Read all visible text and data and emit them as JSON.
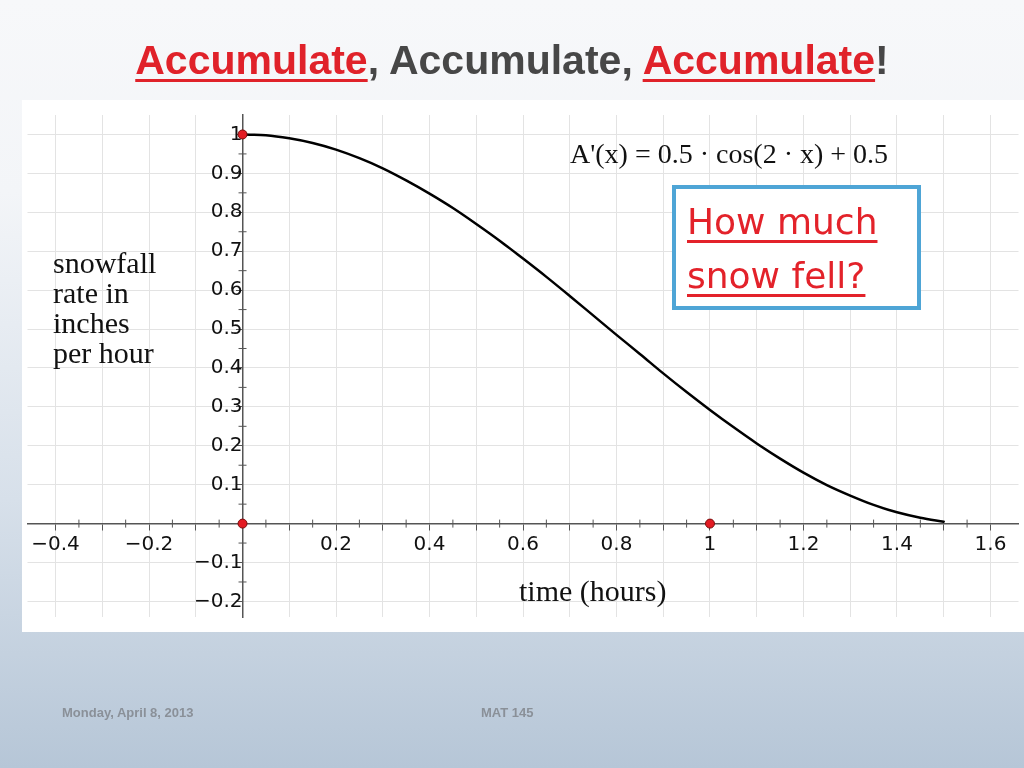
{
  "chart_data": {
    "type": "line",
    "title": "Accumulate, Accumulate, Accumulate!",
    "xlabel": "time (hours)",
    "ylabel": "snowfall rate in inches per hour",
    "annotations": [
      "A'(x) = 0.5 · cos(2 · x) + 0.5",
      "How much snow fell?",
      "Monday, April 8, 2013",
      "MAT 145"
    ],
    "series": [
      {
        "color": "#000000",
        "x": [
          0,
          0.05,
          0.1,
          0.15,
          0.2,
          0.25,
          0.3,
          0.35,
          0.4,
          0.45,
          0.5,
          0.55,
          0.6,
          0.65,
          0.7,
          0.75,
          0.8,
          0.85,
          0.9,
          0.95,
          1,
          1.05,
          1.1,
          1.15,
          1.2,
          1.25,
          1.3,
          1.35,
          1.4,
          1.45,
          1.5
        ],
        "values": [
          1,
          0.998,
          0.99,
          0.978,
          0.961,
          0.939,
          0.913,
          0.882,
          0.848,
          0.811,
          0.77,
          0.727,
          0.681,
          0.634,
          0.585,
          0.535,
          0.485,
          0.436,
          0.386,
          0.338,
          0.292,
          0.248,
          0.206,
          0.167,
          0.131,
          0.099,
          0.072,
          0.048,
          0.029,
          0.015,
          0.005
        ]
      },
      {
        "type": "scatter",
        "color": "#e31b23",
        "marker": "circle",
        "x": [
          0,
          0,
          1
        ],
        "values": [
          1,
          0,
          0
        ]
      }
    ],
    "xlim": [
      -0.46,
      1.66
    ],
    "ylim": [
      -0.24,
      1.05
    ],
    "xticks": [
      {
        "value": -0.4,
        "label": "−0.4"
      },
      {
        "value": -0.3,
        "label": null
      },
      {
        "value": -0.2,
        "label": "−0.2"
      },
      {
        "value": -0.1,
        "label": null
      },
      {
        "value": 0,
        "label": null
      },
      {
        "value": 0.1,
        "label": null
      },
      0.2,
      {
        "value": 0.3,
        "label": null
      },
      0.4,
      {
        "value": 0.5,
        "label": null
      },
      0.6,
      {
        "value": 0.7,
        "label": null
      },
      0.8,
      {
        "value": 0.9,
        "label": null
      },
      1,
      {
        "value": 1.1,
        "label": null
      },
      1.2,
      {
        "value": 1.3,
        "label": null
      },
      1.4,
      {
        "value": 1.5,
        "label": null
      },
      1.6
    ],
    "yticks": [
      {
        "value": -0.2,
        "label": "−0.2"
      },
      {
        "value": -0.1,
        "label": "−0.1"
      },
      {
        "value": 0,
        "label": null
      },
      0.1,
      0.2,
      0.3,
      0.4,
      0.5,
      0.6,
      0.7,
      0.8,
      0.9,
      1
    ],
    "grid": true
  }
}
